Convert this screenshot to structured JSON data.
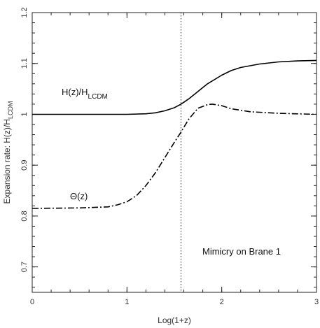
{
  "chart_data": {
    "type": "line",
    "xlabel": "Log(1+z)",
    "ylabel": "Expansion rate: H(z)/H",
    "ylabel_sub": "LCDM",
    "xlim": [
      0,
      3
    ],
    "ylim": [
      0.65,
      1.2
    ],
    "x_ticks": [
      "0",
      "1",
      "2",
      "3"
    ],
    "x_tick_values": [
      0,
      1,
      2,
      3
    ],
    "y_ticks": [
      "0.7",
      "0.8",
      "0.9",
      "1",
      "1.1",
      "1.2"
    ],
    "y_tick_values": [
      0.7,
      0.8,
      0.9,
      1.0,
      1.1,
      1.2
    ],
    "grid": false,
    "vline": {
      "x": 1.57,
      "style": "dotted"
    },
    "annotations": {
      "curve1_main": "H(z)/H",
      "curve1_sub": "LCDM",
      "curve2": "Θ(z)",
      "panel_note": "Mimicry on Brane 1"
    },
    "series": [
      {
        "style": "solid",
        "x": [
          0,
          0.5,
          1.0,
          1.2,
          1.3,
          1.4,
          1.5,
          1.57,
          1.65,
          1.75,
          1.85,
          2.0,
          2.1,
          2.2,
          2.4,
          2.6,
          2.8,
          3.0
        ],
        "values": [
          1.0,
          1.0,
          1.0,
          1.001,
          1.003,
          1.007,
          1.013,
          1.02,
          1.03,
          1.045,
          1.06,
          1.077,
          1.086,
          1.092,
          1.099,
          1.103,
          1.105,
          1.106
        ]
      },
      {
        "style": "dashdot",
        "x": [
          0,
          0.5,
          0.8,
          0.9,
          1.0,
          1.1,
          1.2,
          1.3,
          1.4,
          1.5,
          1.57,
          1.65,
          1.75,
          1.85,
          1.9,
          2.0,
          2.1,
          2.3,
          2.6,
          3.0
        ],
        "values": [
          0.815,
          0.816,
          0.818,
          0.822,
          0.828,
          0.84,
          0.86,
          0.885,
          0.915,
          0.945,
          0.965,
          0.99,
          1.012,
          1.019,
          1.02,
          1.017,
          1.011,
          1.005,
          1.002,
          1.0
        ]
      }
    ]
  }
}
